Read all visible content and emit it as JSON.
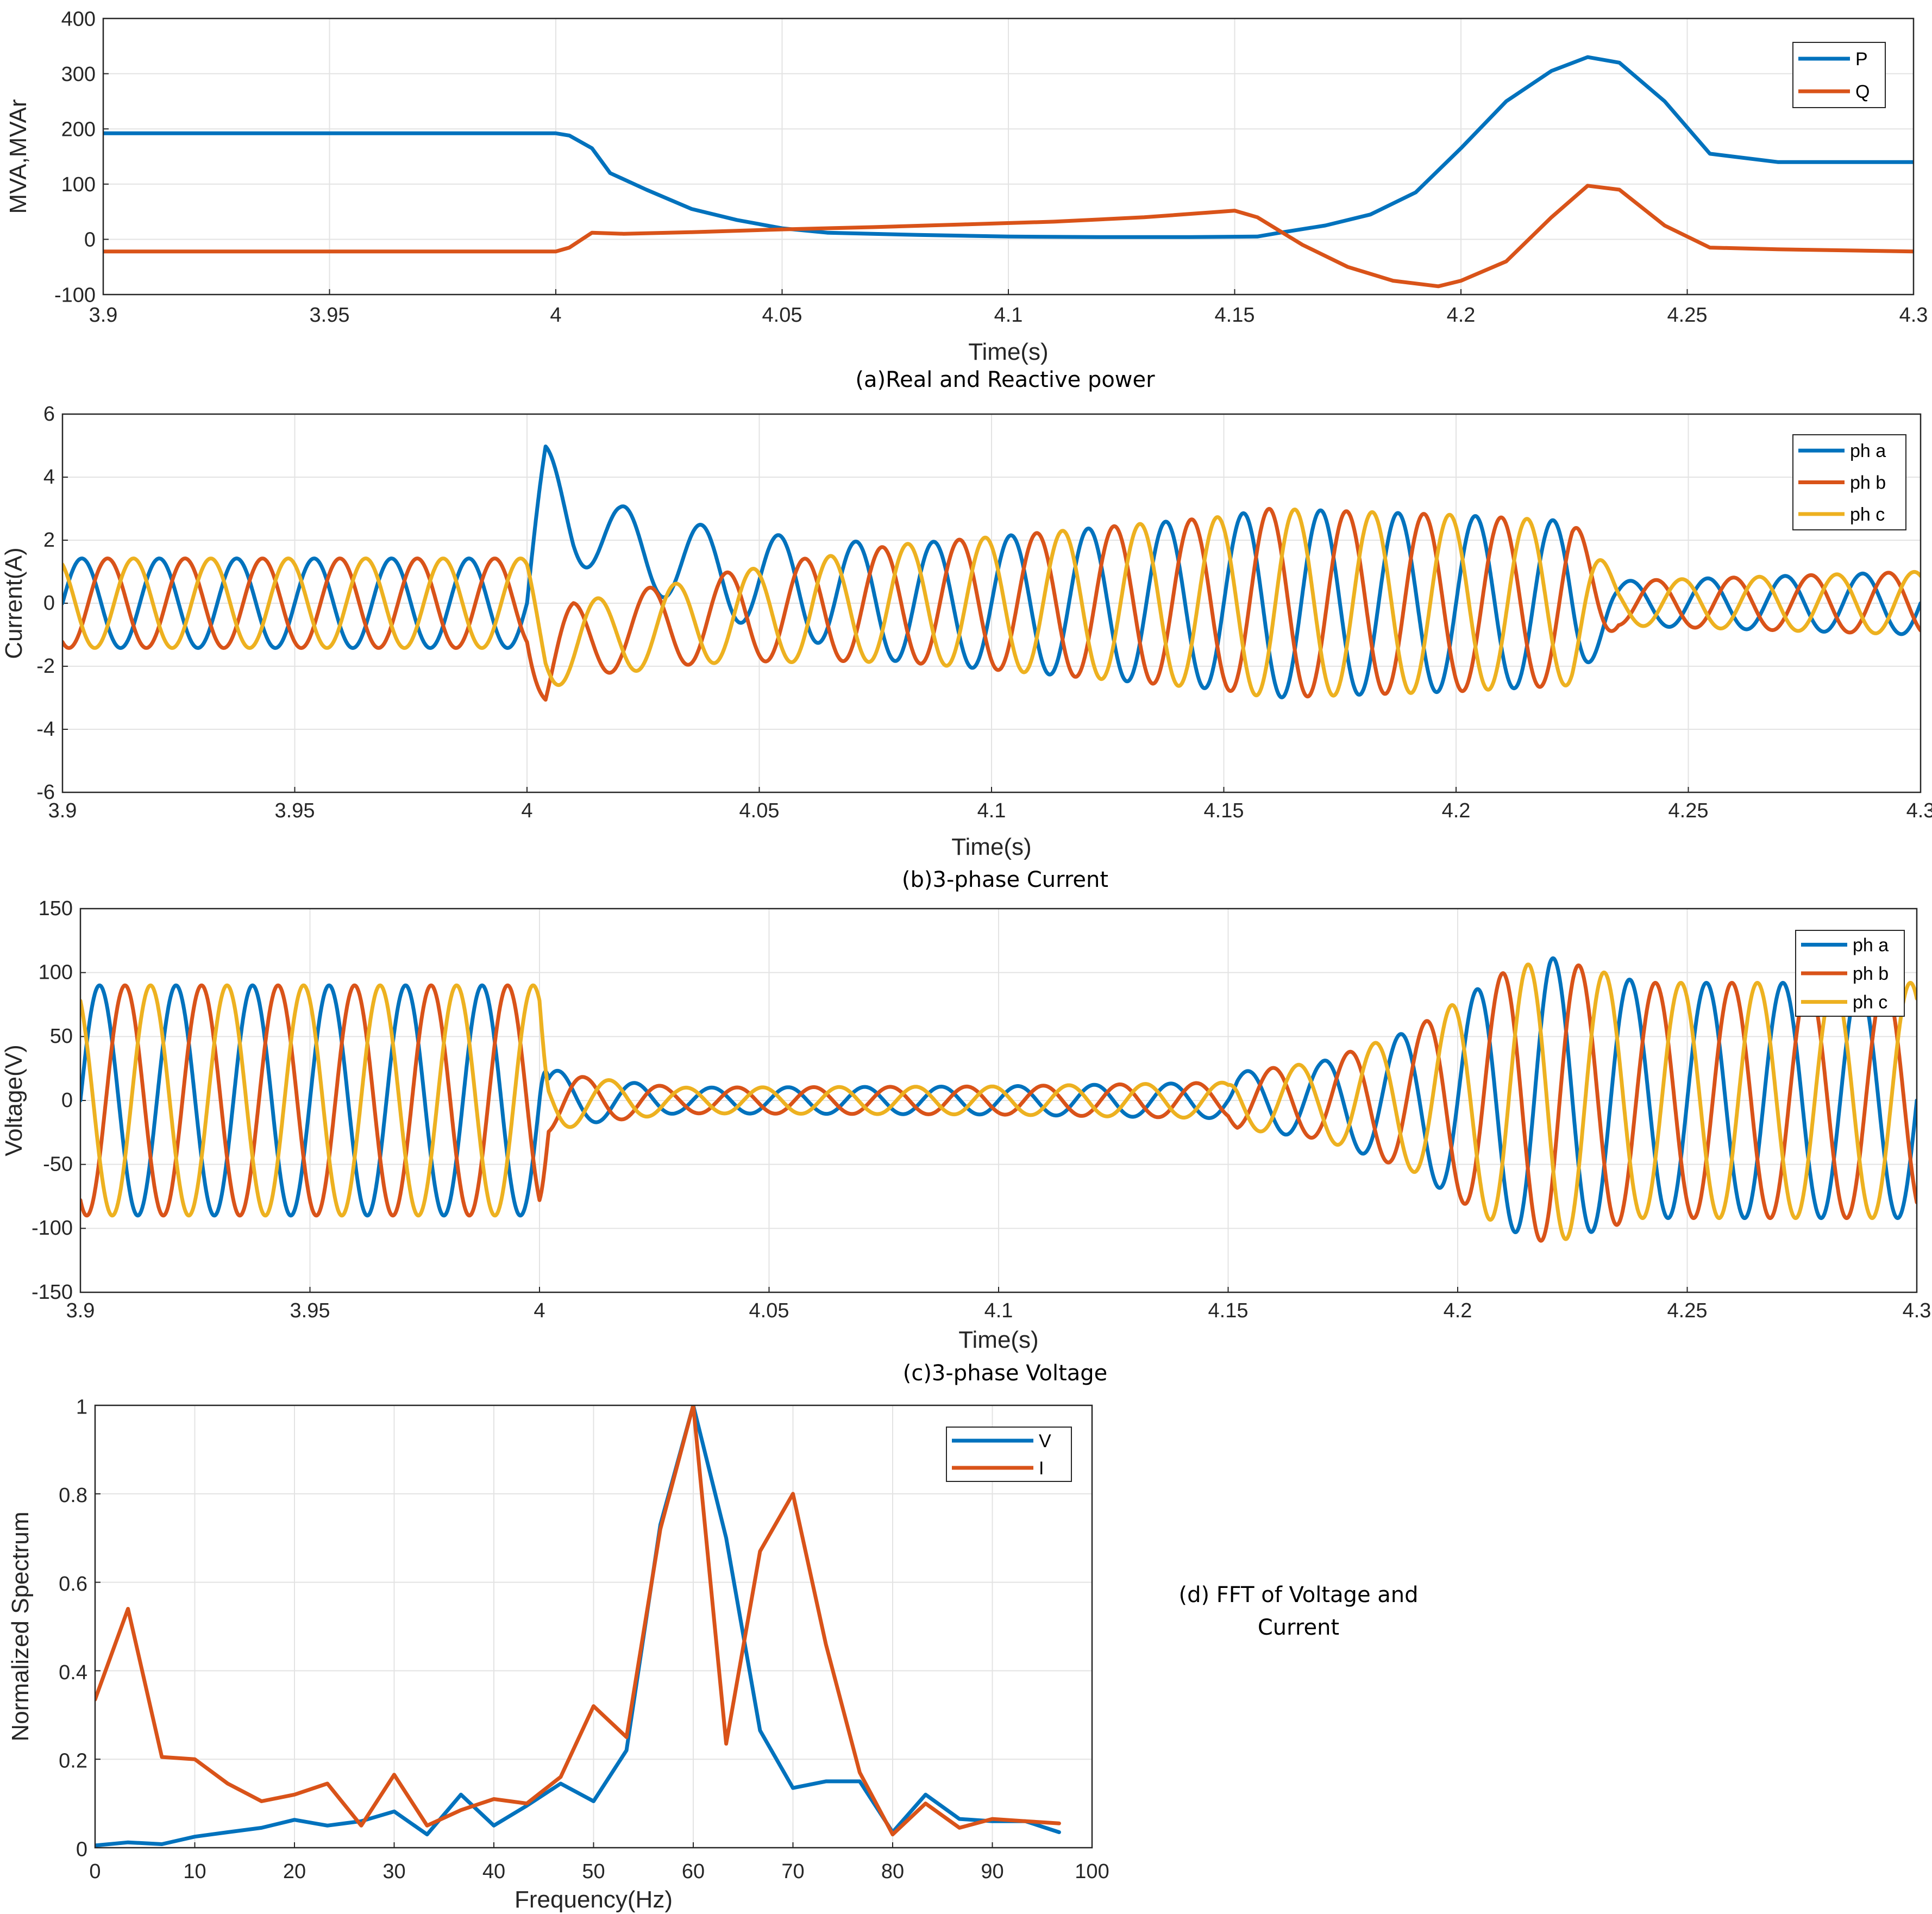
{
  "colors": {
    "blue": "#0072BD",
    "orange": "#D95319",
    "yellow": "#EDB120"
  },
  "chart_data": [
    {
      "id": "power",
      "type": "line",
      "caption": "(a)Real and Reactive power",
      "xlabel": "Time(s)",
      "ylabel": "MVA,MVAr",
      "xlim": [
        3.9,
        4.3
      ],
      "ylim": [
        -100,
        400
      ],
      "xticks": [
        "3.9",
        "3.95",
        "4",
        "4.05",
        "4.1",
        "4.15",
        "4.2",
        "4.25",
        "4.3"
      ],
      "yticks": [
        "-100",
        "0",
        "100",
        "200",
        "300",
        "400"
      ],
      "grid": true,
      "legend_position": "top-right",
      "series": [
        {
          "name": "P",
          "color": "#0072BD",
          "x": [
            3.9,
            3.95,
            4.0,
            4.003,
            4.008,
            4.012,
            4.02,
            4.03,
            4.04,
            4.05,
            4.06,
            4.08,
            4.1,
            4.12,
            4.14,
            4.155,
            4.16,
            4.17,
            4.18,
            4.19,
            4.2,
            4.21,
            4.22,
            4.228,
            4.235,
            4.245,
            4.255,
            4.27,
            4.3
          ],
          "y": [
            192,
            192,
            192,
            188,
            165,
            120,
            90,
            55,
            35,
            20,
            12,
            8,
            5,
            4,
            4,
            5,
            12,
            25,
            45,
            85,
            165,
            250,
            305,
            330,
            320,
            250,
            155,
            140,
            140
          ]
        },
        {
          "name": "Q",
          "color": "#D95319",
          "x": [
            3.9,
            3.95,
            4.0,
            4.003,
            4.008,
            4.015,
            4.03,
            4.05,
            4.07,
            4.09,
            4.11,
            4.13,
            4.15,
            4.155,
            4.165,
            4.175,
            4.185,
            4.195,
            4.2,
            4.21,
            4.22,
            4.228,
            4.235,
            4.245,
            4.255,
            4.27,
            4.3
          ],
          "y": [
            -22,
            -22,
            -22,
            -15,
            12,
            10,
            13,
            18,
            22,
            27,
            32,
            40,
            52,
            40,
            -10,
            -50,
            -75,
            -85,
            -75,
            -40,
            40,
            97,
            90,
            25,
            -15,
            -18,
            -22
          ]
        }
      ]
    },
    {
      "id": "current",
      "type": "line",
      "caption": "(b)3-phase Current",
      "xlabel": "Time(s)",
      "ylabel": "Current(A)",
      "xlim": [
        3.9,
        4.3
      ],
      "ylim": [
        -6,
        6
      ],
      "xticks": [
        "3.9",
        "3.95",
        "4",
        "4.05",
        "4.1",
        "4.15",
        "4.2",
        "4.25",
        "4.3"
      ],
      "yticks": [
        "-6",
        "-4",
        "-2",
        "0",
        "2",
        "4",
        "6"
      ],
      "grid": true,
      "legend_position": "top-right",
      "frequency_hz": 60,
      "amplitude_envelope": {
        "t": [
          3.9,
          4.0,
          4.02,
          4.05,
          4.1,
          4.15,
          4.16,
          4.2,
          4.225,
          4.235,
          4.3
        ],
        "a": [
          1.42,
          1.42,
          1.2,
          1.5,
          2.1,
          2.75,
          3.0,
          2.8,
          2.6,
          0.7,
          1.0
        ]
      },
      "series": [
        {
          "name": "ph a",
          "color": "#0072BD",
          "phase_deg": 0,
          "dc_offset": {
            "t": [
              3.9,
              4.0,
              4.004,
              4.01,
              4.02,
              4.04,
              4.06,
              4.08,
              4.3
            ],
            "v": [
              0,
              0,
              3.6,
              2.6,
              1.9,
              1.0,
              0.45,
              0,
              0
            ]
          }
        },
        {
          "name": "ph b",
          "color": "#D95319",
          "phase_deg": -120,
          "dc_offset": {
            "t": [
              3.9,
              4.0,
              4.004,
              4.01,
              4.02,
              4.04,
              4.06,
              4.08,
              4.3
            ],
            "v": [
              0,
              0,
              -2.3,
              -1.3,
              -0.9,
              -0.5,
              -0.2,
              0,
              0
            ]
          }
        },
        {
          "name": "ph c",
          "color": "#EDB120",
          "phase_deg": 120,
          "dc_offset": {
            "t": [
              3.9,
              4.0,
              4.004,
              4.01,
              4.02,
              4.04,
              4.06,
              4.08,
              4.3
            ],
            "v": [
              0,
              0,
              -1.3,
              -1.2,
              -1.0,
              -0.5,
              -0.25,
              0,
              0
            ]
          }
        }
      ]
    },
    {
      "id": "voltage",
      "type": "line",
      "caption": "(c)3-phase Voltage",
      "xlabel": "Time(s)",
      "ylabel": "Voltage(V)",
      "xlim": [
        3.9,
        4.3
      ],
      "ylim": [
        -150,
        150
      ],
      "xticks": [
        "3.9",
        "3.95",
        "4",
        "4.05",
        "4.1",
        "4.15",
        "4.2",
        "4.25",
        "4.3"
      ],
      "yticks": [
        "-150",
        "-100",
        "-50",
        "0",
        "50",
        "100",
        "150"
      ],
      "grid": true,
      "legend_position": "top-right",
      "frequency_hz": 60,
      "amplitude_envelope": {
        "t": [
          3.9,
          4.0,
          4.002,
          4.01,
          4.03,
          4.1,
          4.15,
          4.152,
          4.17,
          4.19,
          4.21,
          4.22,
          4.24,
          4.3
        ],
        "a": [
          90,
          90,
          25,
          18,
          10,
          11,
          14,
          22,
          30,
          55,
          100,
          112,
          92,
          92
        ]
      },
      "series": [
        {
          "name": "ph a",
          "color": "#0072BD",
          "phase_deg": 0
        },
        {
          "name": "ph b",
          "color": "#D95319",
          "phase_deg": -120
        },
        {
          "name": "ph c",
          "color": "#EDB120",
          "phase_deg": 120
        }
      ]
    },
    {
      "id": "fft",
      "type": "line",
      "caption_lines": [
        "(d) FFT of Voltage and",
        "Current"
      ],
      "xlabel": "Frequency(Hz)",
      "ylabel": "Normalized Spectrum",
      "xlim": [
        0,
        100
      ],
      "ylim": [
        0,
        1
      ],
      "xticks": [
        "0",
        "10",
        "20",
        "30",
        "40",
        "50",
        "60",
        "70",
        "80",
        "90",
        "100"
      ],
      "yticks": [
        "0",
        "0.2",
        "0.4",
        "0.6",
        "0.8",
        "1"
      ],
      "grid": true,
      "legend_position": "top-right",
      "series": [
        {
          "name": "V",
          "color": "#0072BD",
          "x": [
            0,
            3.3,
            6.7,
            10,
            13.3,
            16.7,
            20,
            23.3,
            26.7,
            30,
            33.3,
            36.7,
            40,
            43.3,
            46.7,
            50,
            53.3,
            56.7,
            60,
            63.3,
            66.7,
            70,
            73.3,
            76.7,
            80,
            83.3,
            86.7,
            90,
            93.3,
            96.7
          ],
          "y": [
            0.005,
            0.012,
            0.008,
            0.025,
            0.035,
            0.045,
            0.063,
            0.05,
            0.06,
            0.082,
            0.03,
            0.12,
            0.05,
            0.095,
            0.145,
            0.105,
            0.22,
            0.73,
            1.0,
            0.7,
            0.265,
            0.135,
            0.15,
            0.15,
            0.035,
            0.12,
            0.065,
            0.06,
            0.06,
            0.035
          ]
        },
        {
          "name": "I",
          "color": "#D95319",
          "x": [
            0,
            3.3,
            6.7,
            10,
            13.3,
            16.7,
            20,
            23.3,
            26.7,
            30,
            33.3,
            36.7,
            40,
            43.3,
            46.7,
            50,
            53.3,
            56.7,
            60,
            63.3,
            66.7,
            70,
            73.3,
            76.7,
            80,
            83.3,
            86.7,
            90,
            93.3,
            96.7
          ],
          "y": [
            0.335,
            0.54,
            0.205,
            0.2,
            0.145,
            0.105,
            0.12,
            0.145,
            0.05,
            0.165,
            0.05,
            0.085,
            0.11,
            0.1,
            0.16,
            0.32,
            0.25,
            0.72,
            1.0,
            0.235,
            0.67,
            0.8,
            0.46,
            0.17,
            0.03,
            0.1,
            0.045,
            0.065,
            0.06,
            0.055
          ]
        }
      ]
    }
  ]
}
